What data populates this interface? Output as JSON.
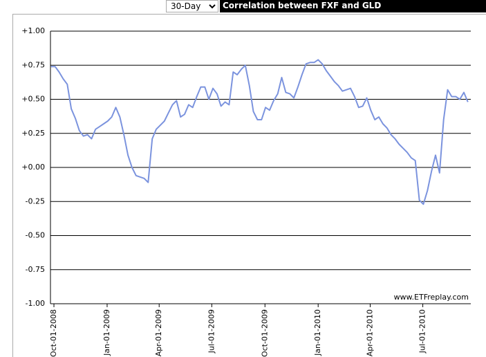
{
  "controls": {
    "period": "30-Day"
  },
  "chart_data": {
    "type": "line",
    "title": "Correlation between FXF and GLD",
    "annotation": "www.ETFreplay.com",
    "x": [
      "2008-09-26",
      "2008-10-03",
      "2008-10-10",
      "2008-10-17",
      "2008-10-24",
      "2008-10-31",
      "2008-11-07",
      "2008-11-14",
      "2008-11-21",
      "2008-11-28",
      "2008-12-05",
      "2008-12-12",
      "2008-12-19",
      "2008-12-26",
      "2009-01-02",
      "2009-01-09",
      "2009-01-16",
      "2009-01-23",
      "2009-01-30",
      "2009-02-06",
      "2009-02-13",
      "2009-02-20",
      "2009-02-27",
      "2009-03-06",
      "2009-03-13",
      "2009-03-20",
      "2009-03-27",
      "2009-04-03",
      "2009-04-10",
      "2009-04-17",
      "2009-04-24",
      "2009-05-01",
      "2009-05-08",
      "2009-05-15",
      "2009-05-22",
      "2009-05-29",
      "2009-06-05",
      "2009-06-12",
      "2009-06-19",
      "2009-06-26",
      "2009-07-03",
      "2009-07-10",
      "2009-07-17",
      "2009-07-24",
      "2009-07-31",
      "2009-08-07",
      "2009-08-14",
      "2009-08-21",
      "2009-08-28",
      "2009-09-04",
      "2009-09-11",
      "2009-09-18",
      "2009-09-25",
      "2009-10-02",
      "2009-10-09",
      "2009-10-16",
      "2009-10-23",
      "2009-10-30",
      "2009-11-06",
      "2009-11-13",
      "2009-11-20",
      "2009-11-27",
      "2009-12-04",
      "2009-12-11",
      "2009-12-18",
      "2009-12-25",
      "2010-01-01",
      "2010-01-08",
      "2010-01-15",
      "2010-01-22",
      "2010-01-29",
      "2010-02-05",
      "2010-02-12",
      "2010-02-19",
      "2010-02-26",
      "2010-03-05",
      "2010-03-12",
      "2010-03-19",
      "2010-03-26",
      "2010-04-02",
      "2010-04-09",
      "2010-04-16",
      "2010-04-23",
      "2010-04-30",
      "2010-05-07",
      "2010-05-14",
      "2010-05-21",
      "2010-05-28",
      "2010-06-04",
      "2010-06-11",
      "2010-06-18",
      "2010-06-25",
      "2010-07-02",
      "2010-07-09",
      "2010-07-16",
      "2010-07-23",
      "2010-07-30",
      "2010-08-06",
      "2010-08-13",
      "2010-08-20",
      "2010-08-27",
      "2010-09-03",
      "2010-09-10",
      "2010-09-17"
    ],
    "series": [
      {
        "name": "30-Day",
        "color": "#7b93de",
        "values": [
          0.74,
          0.74,
          0.7,
          0.65,
          0.61,
          0.43,
          0.36,
          0.27,
          0.23,
          0.24,
          0.21,
          0.28,
          0.3,
          0.32,
          0.34,
          0.37,
          0.44,
          0.37,
          0.24,
          0.09,
          0.0,
          -0.06,
          -0.07,
          -0.08,
          -0.11,
          0.21,
          0.28,
          0.31,
          0.34,
          0.4,
          0.46,
          0.49,
          0.37,
          0.39,
          0.46,
          0.44,
          0.52,
          0.59,
          0.59,
          0.5,
          0.58,
          0.54,
          0.45,
          0.48,
          0.46,
          0.7,
          0.68,
          0.72,
          0.75,
          0.6,
          0.41,
          0.35,
          0.35,
          0.44,
          0.42,
          0.49,
          0.54,
          0.66,
          0.55,
          0.54,
          0.51,
          0.59,
          0.68,
          0.76,
          0.77,
          0.77,
          0.79,
          0.76,
          0.71,
          0.67,
          0.63,
          0.6,
          0.56,
          0.57,
          0.58,
          0.52,
          0.44,
          0.45,
          0.51,
          0.42,
          0.35,
          0.37,
          0.32,
          0.29,
          0.24,
          0.21,
          0.17,
          0.14,
          0.11,
          0.07,
          0.05,
          -0.24,
          -0.27,
          -0.17,
          -0.03,
          0.09,
          -0.04,
          0.35,
          0.57,
          0.52,
          0.52,
          0.5,
          0.55,
          0.48
        ]
      }
    ],
    "xlim": [
      "2008-09-25",
      "2010-09-22"
    ],
    "xticks": [
      {
        "value": "2008-10-01",
        "label": "Oct-01-2008"
      },
      {
        "value": "2009-01-01",
        "label": "Jan-01-2009"
      },
      {
        "value": "2009-04-01",
        "label": "Apr-01-2009"
      },
      {
        "value": "2009-07-01",
        "label": "Jul-01-2009"
      },
      {
        "value": "2009-10-01",
        "label": "Oct-01-2009"
      },
      {
        "value": "2010-01-01",
        "label": "Jan-01-2010"
      },
      {
        "value": "2010-04-01",
        "label": "Apr-01-2010"
      },
      {
        "value": "2010-07-01",
        "label": "Jul-01-2010"
      }
    ],
    "ylim": [
      -1,
      1
    ],
    "yticks": [
      {
        "value": 1,
        "label": "+1.00"
      },
      {
        "value": 0.75,
        "label": "+0.75"
      },
      {
        "value": 0.5,
        "label": "+0.50"
      },
      {
        "value": 0.25,
        "label": "+0.25"
      },
      {
        "value": 0,
        "label": "+0.00"
      },
      {
        "value": -0.25,
        "label": "-0.25"
      },
      {
        "value": -0.5,
        "label": "-0.50"
      },
      {
        "value": -0.75,
        "label": "-0.75"
      },
      {
        "value": -1,
        "label": "-1.00"
      }
    ],
    "grid": true
  }
}
